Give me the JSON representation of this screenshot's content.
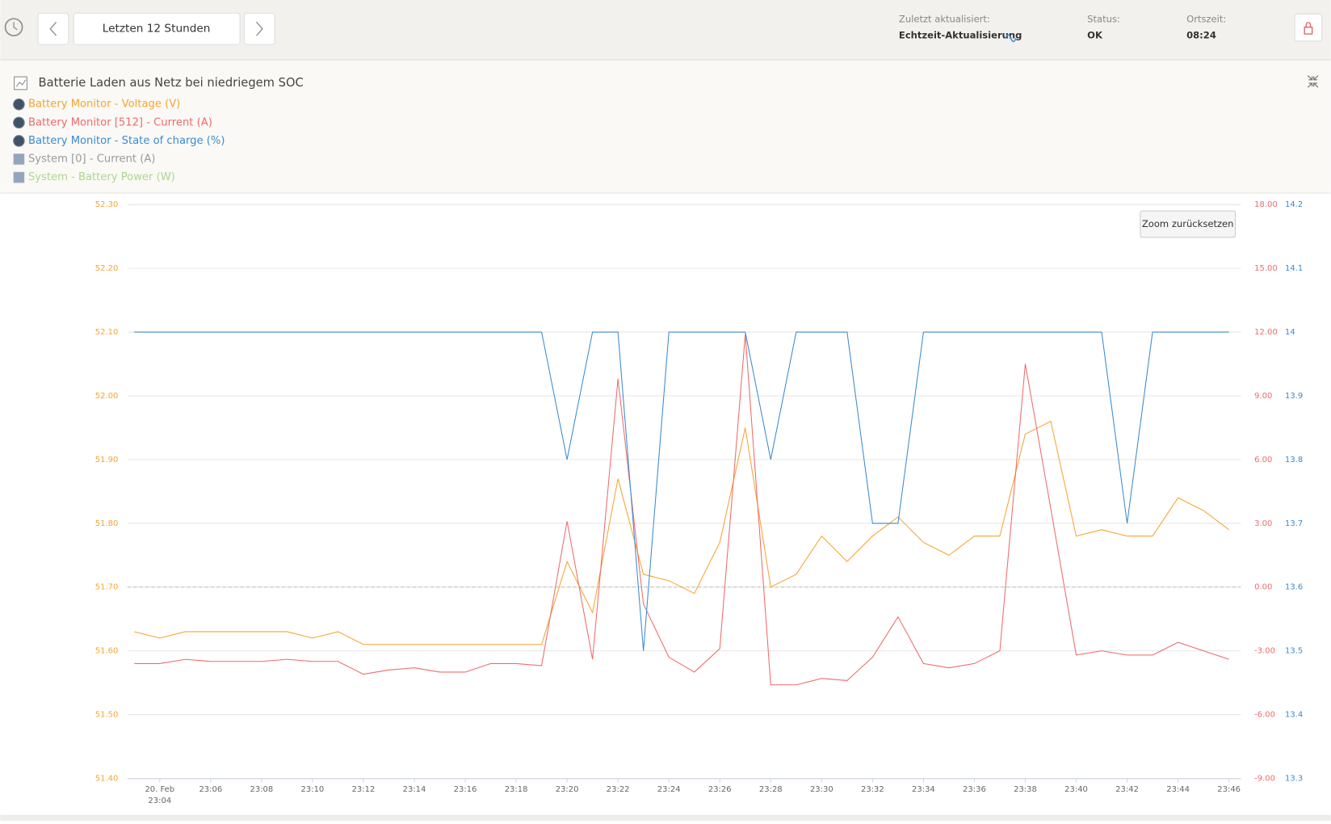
{
  "header": {
    "range_button": "Letzten 12 Stunden",
    "updated_label": "Zuletzt aktualisiert:",
    "updated_value": "Echtzeit-Aktualisierung",
    "status_label": "Status:",
    "status_value": "OK",
    "time_label": "Ortszeit:",
    "time_value": "08:24"
  },
  "chart_data": {
    "type": "line",
    "title": "Batterie Laden aus Netz bei niedriegem SOC",
    "zoom_button": "Zoom zurücksetzen",
    "x": [
      "23:03",
      "23:04",
      "23:05",
      "23:06",
      "23:07",
      "23:08",
      "23:09",
      "23:10",
      "23:11",
      "23:12",
      "23:13",
      "23:14",
      "23:15",
      "23:16",
      "23:17",
      "23:18",
      "23:19",
      "23:20",
      "23:21",
      "23:22",
      "23:23",
      "23:24",
      "23:25",
      "23:26",
      "23:27",
      "23:28",
      "23:29",
      "23:30",
      "23:31",
      "23:32",
      "23:33",
      "23:34",
      "23:35",
      "23:36",
      "23:37",
      "23:38",
      "23:39",
      "23:40",
      "23:41",
      "23:42",
      "23:43",
      "23:44",
      "23:45",
      "23:46"
    ],
    "xlim": [
      "23:02:44",
      "23:46:28"
    ],
    "x_date_label": "20. Feb",
    "xticks": [
      "23:04",
      "23:06",
      "23:08",
      "23:10",
      "23:12",
      "23:14",
      "23:16",
      "23:18",
      "23:20",
      "23:22",
      "23:24",
      "23:26",
      "23:28",
      "23:30",
      "23:32",
      "23:34",
      "23:36",
      "23:38",
      "23:40",
      "23:42",
      "23:44",
      "23:46"
    ],
    "ylim": [
      51.4,
      52.3
    ],
    "yticks": [
      {
        "value": 51.4,
        "label": "51.40"
      },
      {
        "value": 51.5,
        "label": "51.50"
      },
      {
        "value": 51.6,
        "label": "51.60"
      },
      {
        "value": 51.7,
        "label": "51.70"
      },
      {
        "value": 51.8,
        "label": "51.80"
      },
      {
        "value": 51.9,
        "label": "51.90"
      },
      {
        "value": 52.0,
        "label": "52.00"
      },
      {
        "value": 52.1,
        "label": "52.10"
      },
      {
        "value": 52.2,
        "label": "52.20"
      },
      {
        "value": 52.3,
        "label": "52.30"
      }
    ],
    "y2lim": [
      -9,
      18
    ],
    "y2ticks": [
      {
        "value": -9,
        "label": "-9.00"
      },
      {
        "value": -6,
        "label": "-6.00"
      },
      {
        "value": -3,
        "label": "-3.00"
      },
      {
        "value": 0,
        "label": "0.00"
      },
      {
        "value": 3,
        "label": "3.00"
      },
      {
        "value": 6,
        "label": "6.00"
      },
      {
        "value": 9,
        "label": "9.00"
      },
      {
        "value": 12,
        "label": "12.00"
      },
      {
        "value": 15,
        "label": "15.00"
      },
      {
        "value": 18,
        "label": "18.00"
      }
    ],
    "y3lim": [
      13.3,
      14.2
    ],
    "y3ticks": [
      13.3,
      13.4,
      13.5,
      13.6,
      13.7,
      13.8,
      13.9,
      14,
      14.1,
      14.2
    ],
    "grid": true,
    "series": [
      {
        "name": "Battery Monitor - Voltage (V)",
        "color": "#f5a431",
        "axis": "y",
        "values": [
          51.63,
          51.62,
          51.63,
          51.63,
          51.63,
          51.63,
          51.63,
          51.62,
          51.63,
          51.61,
          51.61,
          51.61,
          51.61,
          51.61,
          51.61,
          51.61,
          51.61,
          51.74,
          51.66,
          51.87,
          51.72,
          51.71,
          51.69,
          51.77,
          51.95,
          51.7,
          51.72,
          51.78,
          51.74,
          51.78,
          51.81,
          51.77,
          51.75,
          51.78,
          51.78,
          51.94,
          51.96,
          51.78,
          51.79,
          51.78,
          51.78,
          51.84,
          51.82,
          51.79
        ]
      },
      {
        "name": "Battery Monitor [512] - Current (A)",
        "color": "#f06a6a",
        "axis": "y2",
        "values": [
          -3.6,
          -3.6,
          -3.4,
          -3.5,
          -3.5,
          -3.5,
          -3.4,
          -3.5,
          -3.5,
          -4.1,
          -3.9,
          -3.8,
          -4.0,
          -4.0,
          -3.6,
          -3.6,
          -3.7,
          3.1,
          -3.4,
          9.8,
          -0.8,
          -3.3,
          -4.0,
          -2.9,
          11.9,
          -4.6,
          -4.6,
          -4.3,
          -4.4,
          -3.3,
          -1.4,
          -3.6,
          -3.8,
          -3.6,
          -3.0,
          10.5,
          3.7,
          -3.2,
          -3.0,
          -3.2,
          -3.2,
          -2.6,
          -3.0,
          -3.4
        ]
      },
      {
        "name": "Battery Monitor - State of charge (%)",
        "color": "#3b8bd0",
        "axis": "y3",
        "values": [
          14,
          14,
          14,
          14,
          14,
          14,
          14,
          14,
          14,
          14,
          14,
          14,
          14,
          14,
          14,
          14,
          14,
          13.8,
          14,
          14,
          13.5,
          14,
          14,
          14,
          14,
          13.8,
          14,
          14,
          14,
          13.7,
          13.7,
          14,
          14,
          14,
          14,
          14,
          14,
          14,
          14,
          13.7,
          14,
          14,
          14,
          14
        ]
      }
    ],
    "hidden_series": [
      {
        "name": "System [0] - Current (A)",
        "color": "#9a9a9a"
      },
      {
        "name": "System - Battery Power (W)",
        "color": "#a9d88e"
      }
    ]
  }
}
